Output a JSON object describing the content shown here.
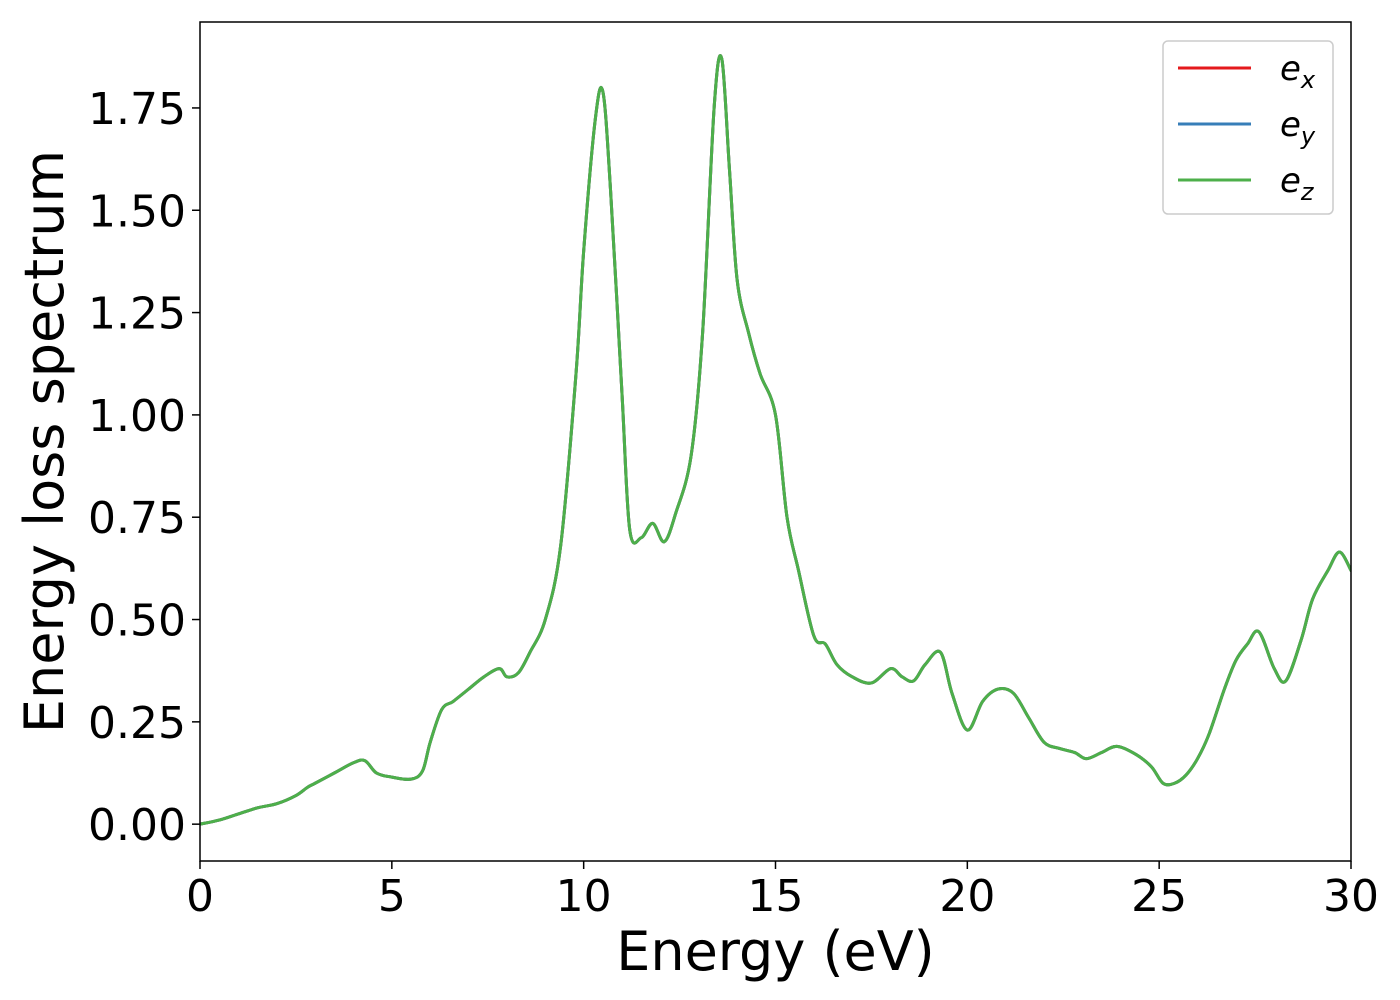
{
  "chart_data": {
    "type": "line",
    "title": "",
    "xlabel": "Energy (eV)",
    "ylabel": "Energy loss spectrum",
    "xlim": [
      0,
      30
    ],
    "ylim": [
      -0.09,
      1.96
    ],
    "xticks": [
      0,
      5,
      10,
      15,
      20,
      25,
      30
    ],
    "xtick_labels": [
      "0",
      "5",
      "10",
      "15",
      "20",
      "25",
      "30"
    ],
    "yticks": [
      0.0,
      0.25,
      0.5,
      0.75,
      1.0,
      1.25,
      1.5,
      1.75
    ],
    "ytick_labels": [
      "0.00",
      "0.25",
      "0.50",
      "0.75",
      "1.00",
      "1.25",
      "1.50",
      "1.75"
    ],
    "grid": false,
    "legend_position": "top-right",
    "series": [
      {
        "name": "e",
        "subscript": "x",
        "color": "#e41a1c"
      },
      {
        "name": "e",
        "subscript": "y",
        "color": "#377eb8"
      },
      {
        "name": "e",
        "subscript": "z",
        "color": "#4daf4a"
      }
    ],
    "x": [
      0,
      0.5,
      1,
      1.5,
      2,
      2.5,
      2.8,
      3,
      3.5,
      4,
      4.3,
      4.6,
      5,
      5.5,
      5.8,
      6,
      6.3,
      6.6,
      7,
      7.4,
      7.8,
      8,
      8.3,
      8.6,
      9,
      9.4,
      9.8,
      10,
      10.3,
      10.5,
      10.7,
      11,
      11.2,
      11.5,
      11.8,
      12.1,
      12.4,
      12.8,
      13.1,
      13.4,
      13.6,
      13.8,
      14,
      14.3,
      14.6,
      15,
      15.3,
      15.6,
      16,
      16.3,
      16.6,
      17,
      17.5,
      18,
      18.3,
      18.6,
      18.9,
      19.3,
      19.6,
      20,
      20.4,
      20.8,
      21.2,
      21.6,
      22,
      22.4,
      22.8,
      23.1,
      23.5,
      23.9,
      24.4,
      24.8,
      25.1,
      25.4,
      25.7,
      26,
      26.3,
      26.7,
      27,
      27.3,
      27.6,
      28,
      28.3,
      28.7,
      29,
      29.4,
      29.7,
      30
    ],
    "values": [
      0.0,
      0.01,
      0.025,
      0.04,
      0.05,
      0.07,
      0.09,
      0.1,
      0.125,
      0.15,
      0.155,
      0.125,
      0.115,
      0.11,
      0.13,
      0.2,
      0.28,
      0.3,
      0.33,
      0.36,
      0.38,
      0.36,
      0.37,
      0.42,
      0.5,
      0.68,
      1.1,
      1.4,
      1.72,
      1.79,
      1.55,
      1.05,
      0.72,
      0.7,
      0.735,
      0.69,
      0.76,
      0.9,
      1.2,
      1.75,
      1.87,
      1.6,
      1.33,
      1.2,
      1.1,
      1.0,
      0.75,
      0.62,
      0.46,
      0.44,
      0.39,
      0.36,
      0.345,
      0.38,
      0.36,
      0.35,
      0.39,
      0.42,
      0.32,
      0.23,
      0.3,
      0.33,
      0.32,
      0.26,
      0.2,
      0.185,
      0.175,
      0.16,
      0.175,
      0.19,
      0.17,
      0.14,
      0.1,
      0.1,
      0.12,
      0.16,
      0.22,
      0.33,
      0.4,
      0.44,
      0.47,
      0.38,
      0.35,
      0.45,
      0.55,
      0.62,
      0.665,
      0.62
    ]
  }
}
